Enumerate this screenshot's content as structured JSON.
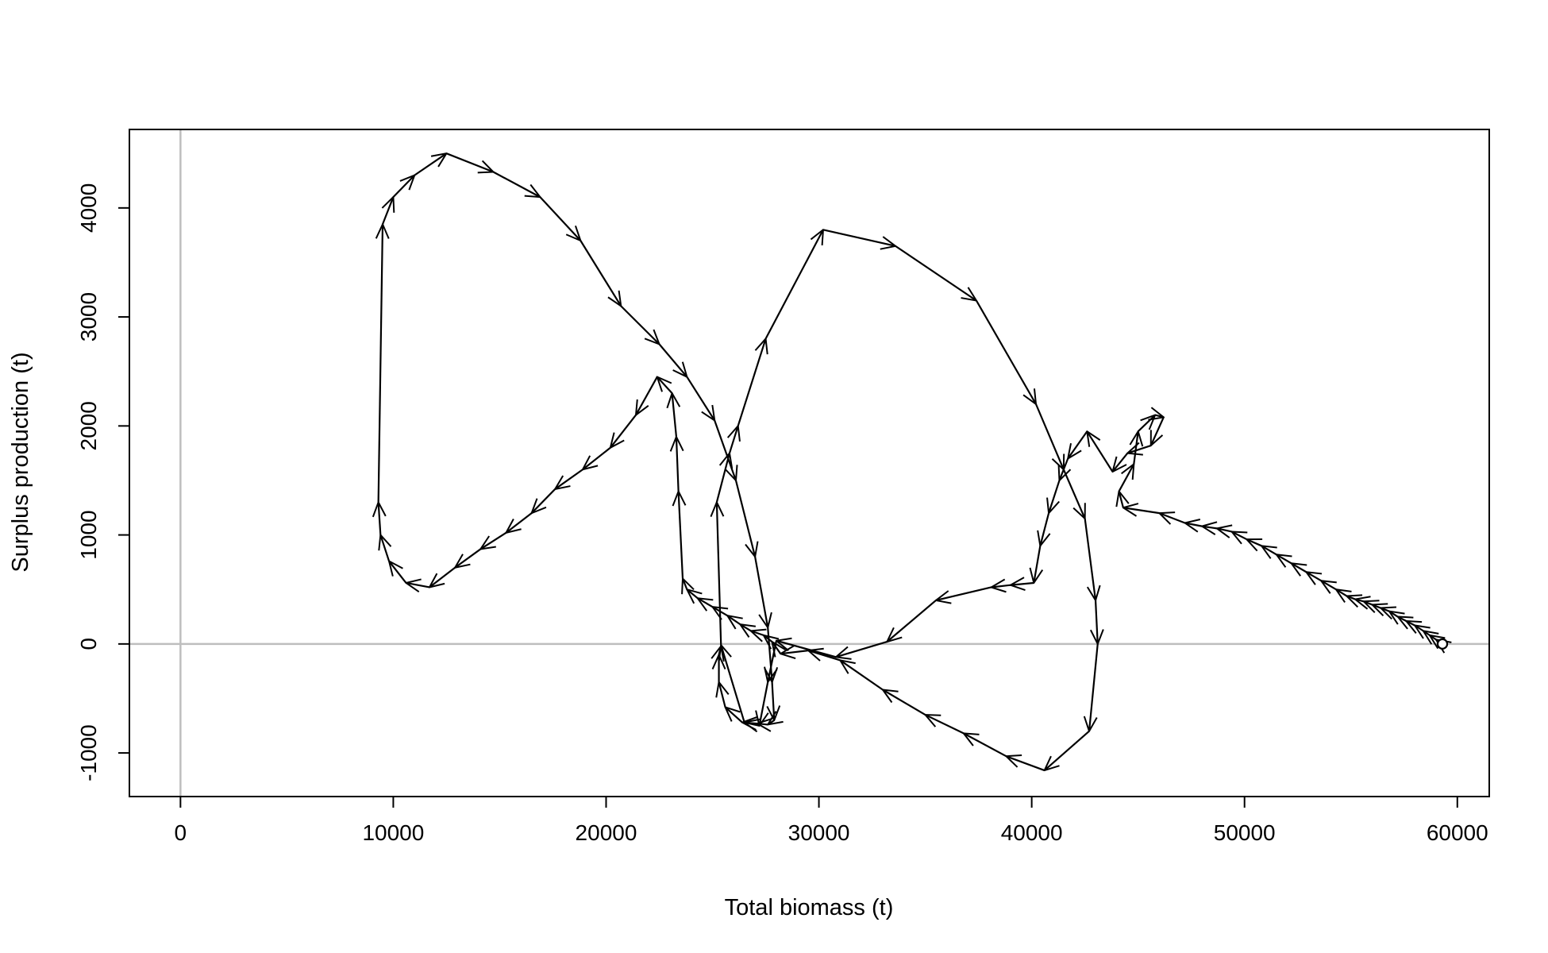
{
  "chart_data": {
    "type": "line",
    "title": "",
    "xlabel": "Total biomass (t)",
    "ylabel": "Surplus production (t)",
    "xlim": [
      -2400,
      61500
    ],
    "ylim": [
      -1400,
      4720
    ],
    "xticks": [
      0,
      10000,
      20000,
      30000,
      40000,
      50000,
      60000
    ],
    "xtick_labels": [
      "0",
      "10000",
      "20000",
      "30000",
      "40000",
      "50000",
      "60000"
    ],
    "yticks": [
      -1000,
      0,
      1000,
      2000,
      3000,
      4000
    ],
    "ytick_labels": [
      "-1000",
      "0",
      "1000",
      "2000",
      "3000",
      "4000"
    ],
    "reference_lines": {
      "x": 0,
      "y": 0,
      "color": "#bebebe"
    },
    "grid": false,
    "legend": "none",
    "line_color": "#000000",
    "start_marker": "open-circle",
    "series": [
      {
        "x": [
          59300,
          59000,
          58700,
          58400,
          58000,
          57600,
          57200,
          56800,
          56400,
          56000,
          55600,
          55200,
          54800,
          54300,
          53600,
          52900,
          52200,
          51500,
          50800,
          50100,
          49400,
          48700,
          48000,
          47200,
          46000,
          44300,
          44100,
          44800,
          45000,
          45800,
          46200,
          45600,
          44500,
          43800,
          42600,
          41700,
          41300,
          40800,
          40400,
          40100,
          39000,
          38100,
          35500,
          33200,
          30800,
          28000,
          27600,
          27200,
          26500,
          25400,
          25200,
          25800,
          26200,
          27500,
          30200,
          33600,
          37400,
          40200,
          41500,
          42500,
          43000,
          43100,
          42700,
          40600,
          38800,
          36800
        ],
        "y": [
          0,
          40,
          80,
          120,
          170,
          210,
          250,
          300,
          330,
          360,
          390,
          410,
          440,
          500,
          580,
          660,
          740,
          820,
          900,
          960,
          1030,
          1060,
          1080,
          1110,
          1200,
          1250,
          1400,
          1650,
          1950,
          2100,
          2080,
          1820,
          1750,
          1580,
          1950,
          1700,
          1500,
          1200,
          900,
          560,
          540,
          520,
          400,
          20,
          -120,
          30,
          -350,
          -750,
          -720,
          -10,
          1300,
          1750,
          2000,
          2800,
          3800,
          3650,
          3150,
          2200,
          1600,
          1150,
          400,
          0,
          -800,
          -1160,
          -1030,
          -820
        ]
      },
      {
        "x": [
          36800,
          35000,
          33000,
          31000,
          29500,
          28200,
          27800,
          27400,
          26800,
          26300,
          25700,
          25000,
          24300,
          23800,
          23600,
          23400,
          23300,
          23100,
          22400,
          21400,
          20200,
          18900,
          17600,
          16500,
          15300,
          14100,
          12900,
          11700,
          10600,
          9800,
          9400,
          9300,
          9500,
          10000,
          11000,
          12500,
          14700,
          16900,
          18800,
          20700,
          22500,
          23800,
          25100,
          26100,
          27000,
          27600,
          27800,
          27900,
          27600,
          27100,
          26400,
          25600,
          25300,
          25300,
          25400
        ],
        "y": [
          -820,
          -650,
          -420,
          -150,
          -60,
          -90,
          20,
          80,
          120,
          180,
          260,
          340,
          420,
          500,
          600,
          1400,
          1900,
          2300,
          2450,
          2100,
          1800,
          1600,
          1420,
          1200,
          1020,
          870,
          700,
          520,
          560,
          760,
          1000,
          1300,
          3850,
          4100,
          4300,
          4500,
          4330,
          4100,
          3700,
          3100,
          2750,
          2450,
          2050,
          1500,
          800,
          150,
          -350,
          -700,
          -740,
          -730,
          -720,
          -580,
          -350,
          -100,
          -20
        ]
      }
    ]
  }
}
